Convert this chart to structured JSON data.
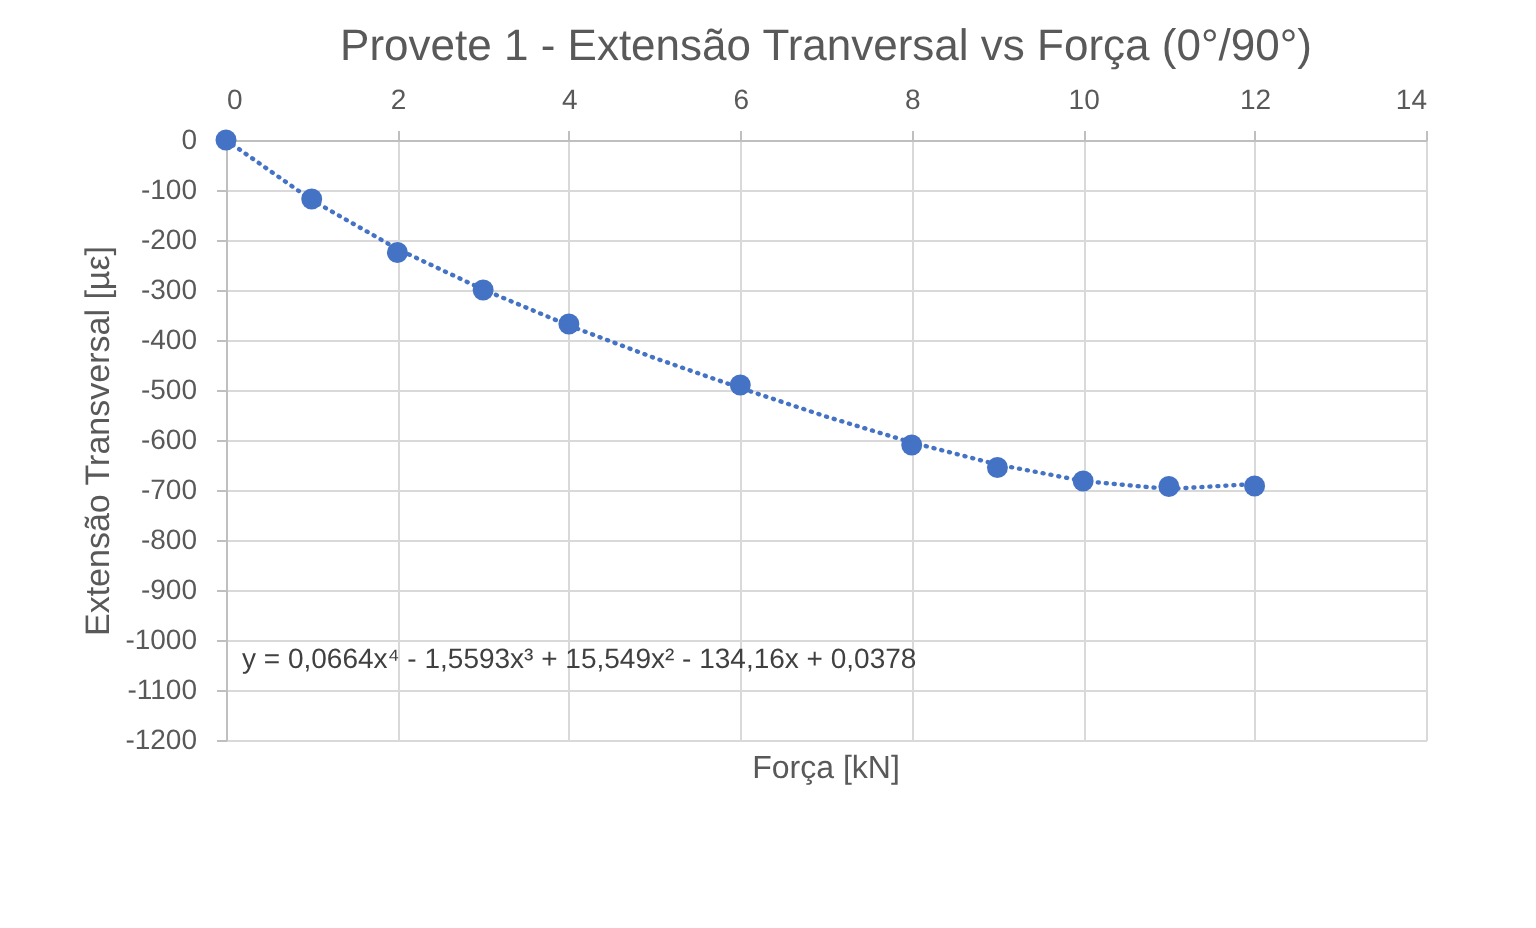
{
  "chart_data": {
    "type": "scatter",
    "title": "Provete 1 - Extensão Tranversal vs Força (0°/90°)",
    "xlabel": "Força [kN]",
    "ylabel": "Extensão Transversal [µε]",
    "x": [
      0,
      1,
      2,
      3,
      4,
      6,
      8,
      9,
      10,
      11,
      12
    ],
    "series": [
      {
        "type": "scatter",
        "color": "#4472c4",
        "marker": "circle",
        "values": [
          0,
          -118,
          -225,
          -300,
          -368,
          -490,
          -610,
          -655,
          -682,
          -693,
          -692
        ]
      },
      {
        "type": "line",
        "color": "#4472c4",
        "line_style": "dotted",
        "marker": "none",
        "x": [
          0,
          1,
          2,
          3,
          4,
          5,
          6,
          7,
          8,
          9,
          10,
          11,
          12
        ],
        "values": [
          0,
          -120,
          -218,
          -299,
          -371,
          -436,
          -496,
          -553,
          -605,
          -649,
          -682,
          -698,
          -688
        ]
      }
    ],
    "annotations": [
      "y = 0,0664x⁴ - 1,5593x³ + 15,549x² - 134,16x + 0,0378"
    ],
    "xlim": [
      0,
      14
    ],
    "xticks": [
      0,
      2,
      4,
      6,
      8,
      10,
      12,
      14
    ],
    "ylim": [
      -1200,
      0
    ],
    "yticks": [
      0,
      -100,
      -200,
      -300,
      -400,
      -500,
      -600,
      -700,
      -800,
      -900,
      -1000,
      -1100,
      -1200
    ],
    "grid": true,
    "legend": false
  }
}
